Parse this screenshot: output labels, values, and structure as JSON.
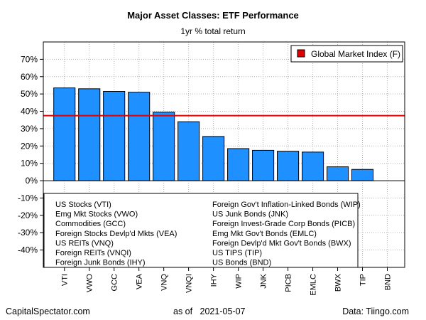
{
  "chart_data": {
    "type": "bar",
    "title": "Major Asset Classes: ETF Performance",
    "subtitle": "1yr % total return",
    "categories": [
      "VTI",
      "VWO",
      "GCC",
      "VEA",
      "VNQ",
      "VNQI",
      "IHY",
      "WIP",
      "JNK",
      "PICB",
      "EMLC",
      "BWX",
      "TIP",
      "BND"
    ],
    "values": [
      53.5,
      53.0,
      51.5,
      51.0,
      39.5,
      34.0,
      25.5,
      18.5,
      17.5,
      17.0,
      16.5,
      8.0,
      6.5,
      0.0
    ],
    "ylim": [
      -50,
      80
    ],
    "yticks": [
      70,
      60,
      50,
      40,
      30,
      20,
      10,
      0,
      -10,
      -20,
      -30,
      -40
    ],
    "ytick_labels": [
      "70%",
      "60%",
      "50%",
      "40%",
      "30%",
      "20%",
      "10%",
      "0%",
      "-10%",
      "-20%",
      "-30%",
      "-40%"
    ],
    "bar_color": "#1e90ff",
    "reference_line": {
      "label": "Global Market Index (F)",
      "value": 37.5,
      "color": "#e00000"
    },
    "grid": true,
    "legend_position": "top-right",
    "descriptions": [
      "US Stocks (VTI)",
      "Emg Mkt Stocks (VWO)",
      "Commodities (GCC)",
      "Foreign Stocks Devlp'd Mkts (VEA)",
      "US REITs (VNQ)",
      "Foreign REITs (VNQI)",
      "Foreign Junk Bonds (IHY)",
      "Foreign Gov't Inflation-Linked Bonds (WIP)",
      "US Junk Bonds (JNK)",
      "Foreign Invest-Grade Corp Bonds (PICB)",
      "Emg Mkt Gov't Bonds (EMLC)",
      "Foreign Devlp'd Mkt Gov't Bonds (BWX)",
      "US TIPS (TIP)",
      "US Bonds (BND)"
    ]
  },
  "footer": {
    "source_left": "CapitalSpectator.com",
    "as_of_label": "as of",
    "as_of_date": "2021-05-07",
    "source_right": "Data: Tiingo.com"
  }
}
